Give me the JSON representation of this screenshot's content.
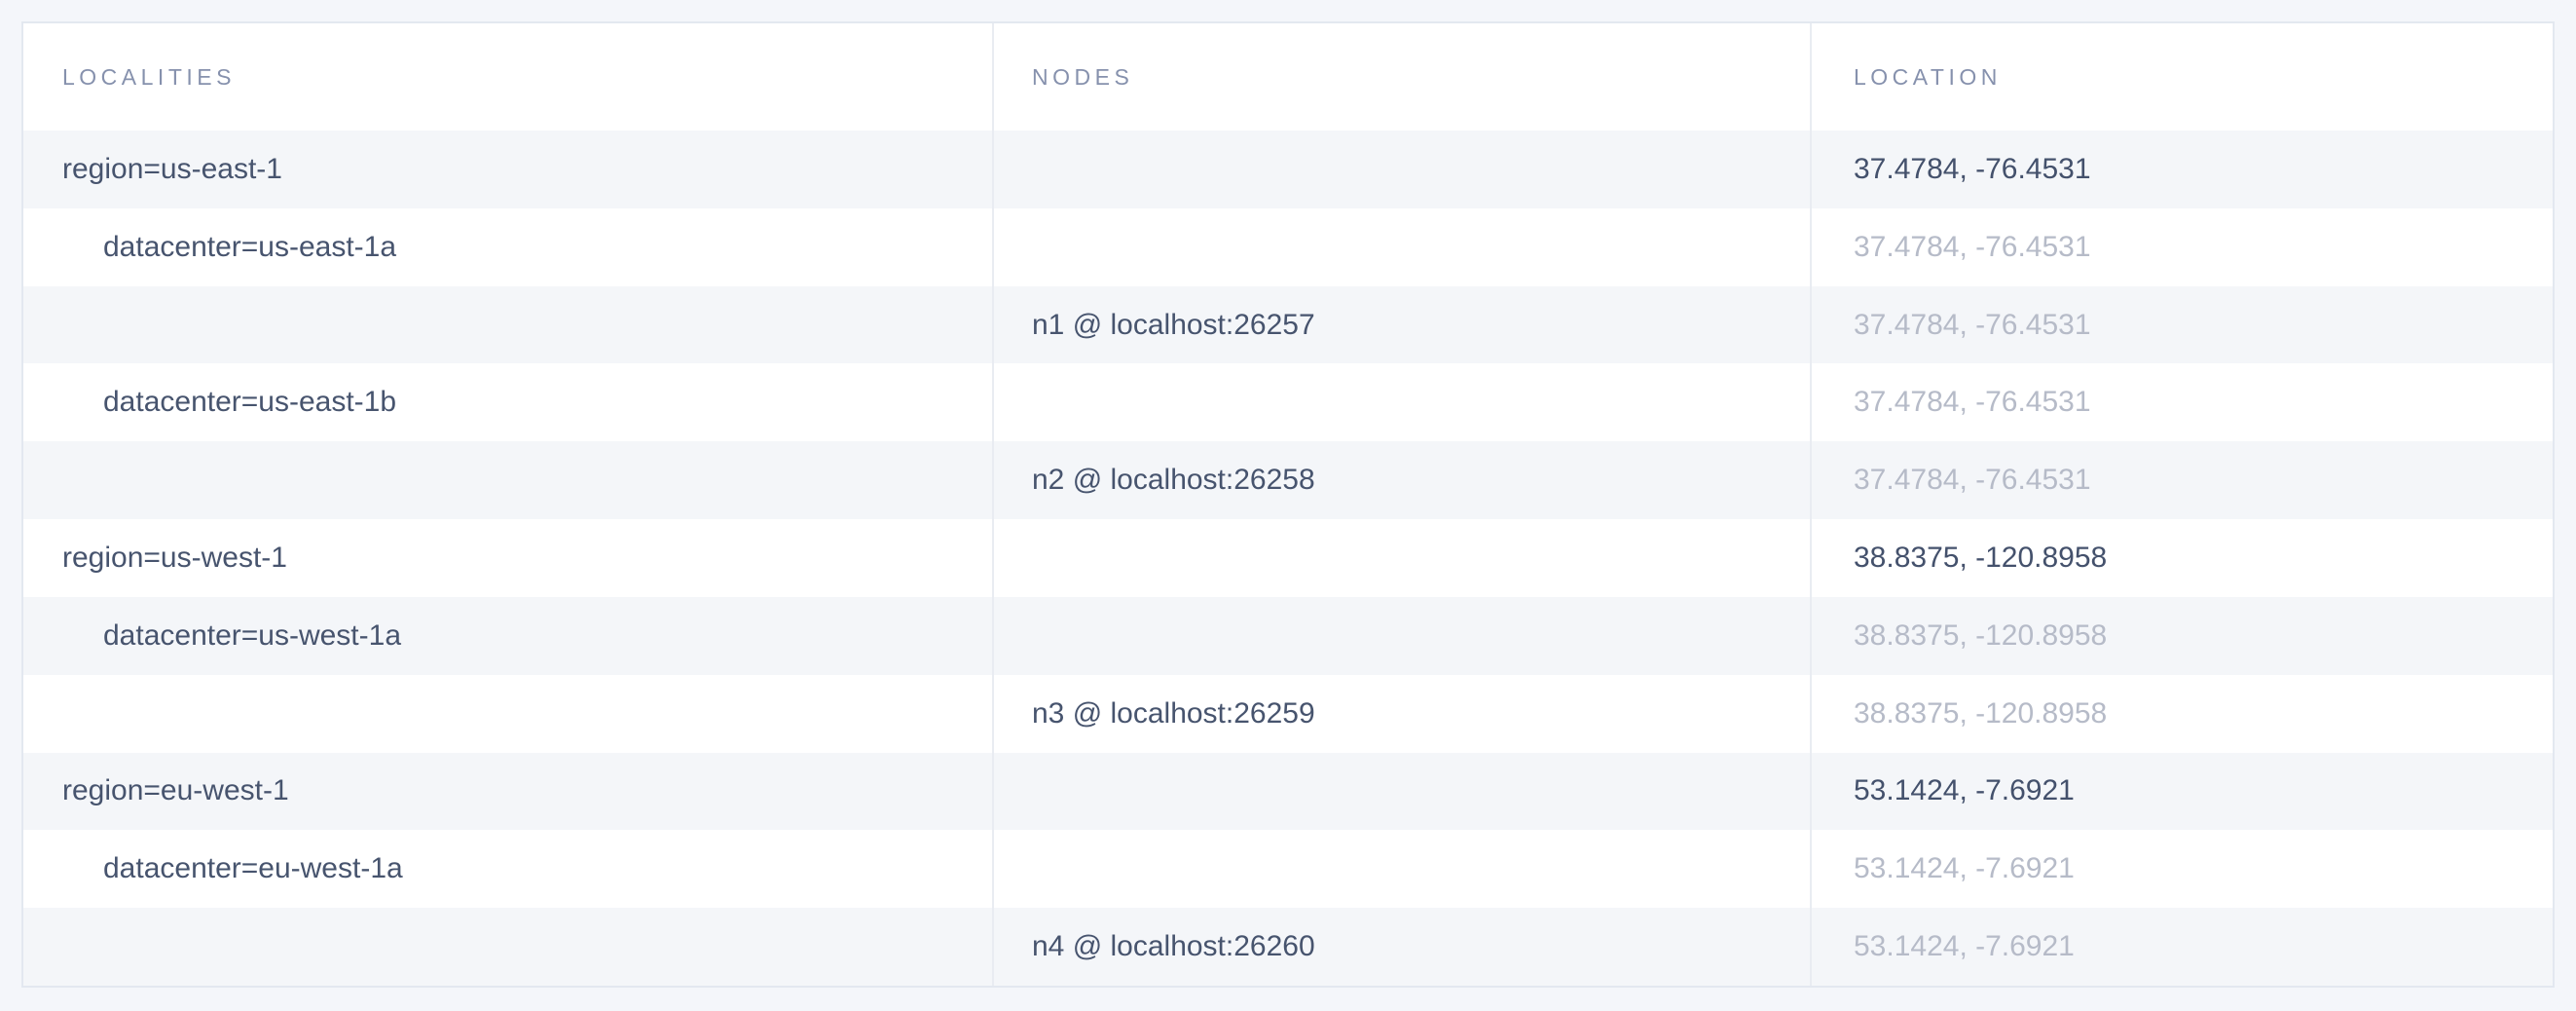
{
  "table": {
    "headers": {
      "localities": "LOCALITIES",
      "nodes": "NODES",
      "location": "LOCATION"
    },
    "rows": [
      {
        "locality": "region=us-east-1",
        "node": "",
        "location": "37.4784, -76.4531",
        "indent": false,
        "location_style": "dark"
      },
      {
        "locality": "datacenter=us-east-1a",
        "node": "",
        "location": "37.4784, -76.4531",
        "indent": true,
        "location_style": "muted"
      },
      {
        "locality": "",
        "node": "n1 @ localhost:26257",
        "location": "37.4784, -76.4531",
        "indent": false,
        "location_style": "muted"
      },
      {
        "locality": "datacenter=us-east-1b",
        "node": "",
        "location": "37.4784, -76.4531",
        "indent": true,
        "location_style": "muted"
      },
      {
        "locality": "",
        "node": "n2 @ localhost:26258",
        "location": "37.4784, -76.4531",
        "indent": false,
        "location_style": "muted"
      },
      {
        "locality": "region=us-west-1",
        "node": "",
        "location": "38.8375, -120.8958",
        "indent": false,
        "location_style": "dark"
      },
      {
        "locality": "datacenter=us-west-1a",
        "node": "",
        "location": "38.8375, -120.8958",
        "indent": true,
        "location_style": "muted"
      },
      {
        "locality": "",
        "node": "n3 @ localhost:26259",
        "location": "38.8375, -120.8958",
        "indent": false,
        "location_style": "muted"
      },
      {
        "locality": "region=eu-west-1",
        "node": "",
        "location": "53.1424, -7.6921",
        "indent": false,
        "location_style": "dark"
      },
      {
        "locality": "datacenter=eu-west-1a",
        "node": "",
        "location": "53.1424, -7.6921",
        "indent": true,
        "location_style": "muted"
      },
      {
        "locality": "",
        "node": "n4 @ localhost:26260",
        "location": "53.1424, -7.6921",
        "indent": false,
        "location_style": "muted"
      }
    ]
  },
  "colors": {
    "page_background": "#f4f6fa",
    "row_stripe": "#f4f6f9",
    "table_border": "#e3e8f0",
    "column_divider": "#e9ecf2",
    "header_text": "#8691ad",
    "body_text": "#47546e",
    "location_dark_text": "#44516c",
    "location_muted_text": "#b6bbc8"
  }
}
